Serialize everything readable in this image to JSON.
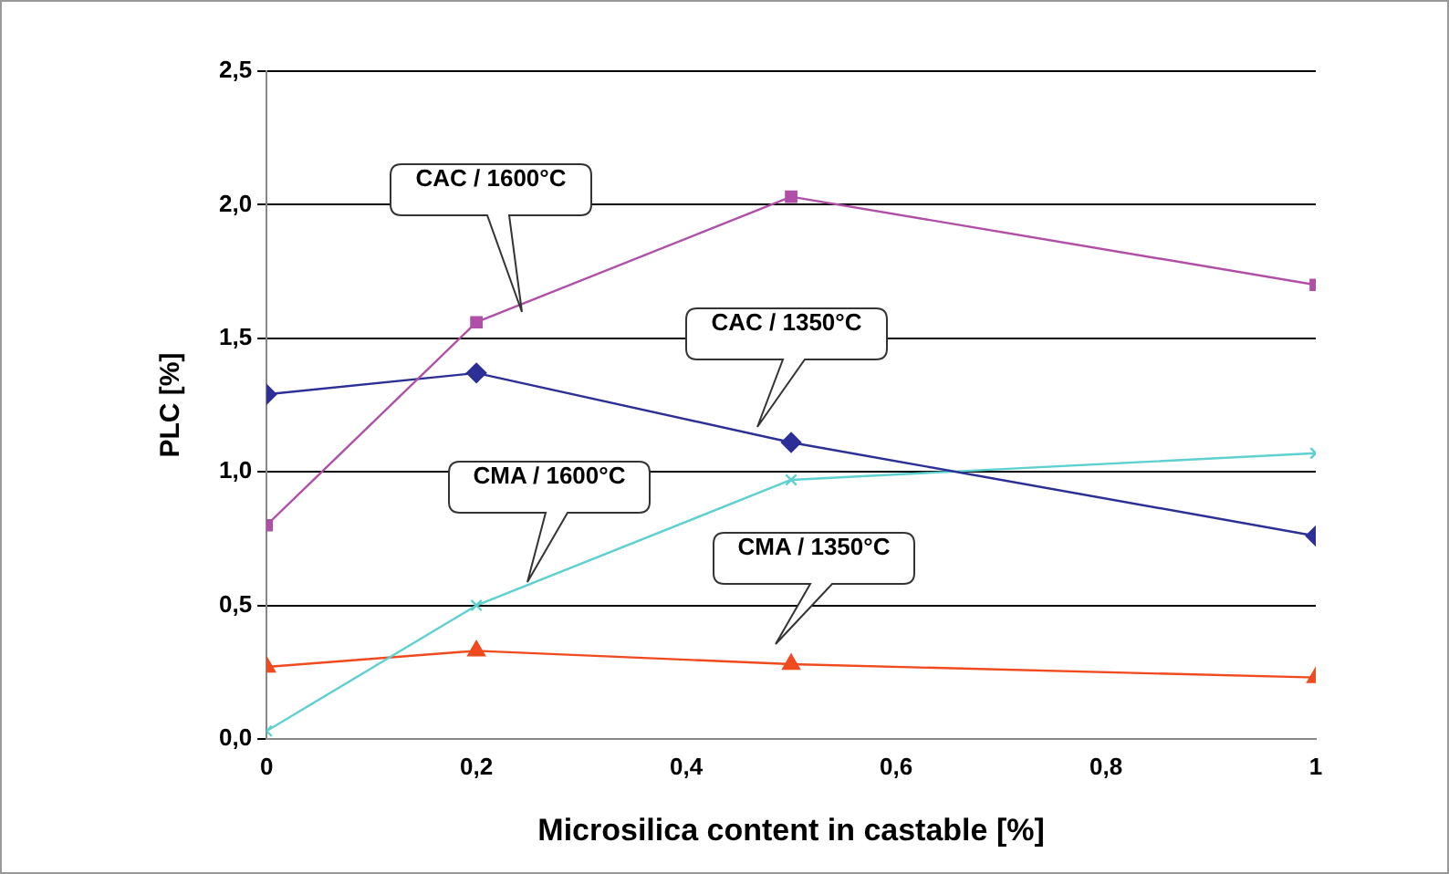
{
  "chart_data": {
    "type": "line",
    "xlabel": "Microsilica content in castable [%]",
    "ylabel": "PLC [%]",
    "x": [
      0,
      0.2,
      0.5,
      1
    ],
    "series": [
      {
        "color": "#b04fa8",
        "marker": "square",
        "values": [
          0.8,
          1.56,
          2.03,
          1.7
        ]
      },
      {
        "color": "#2b2f96",
        "marker": "diamond",
        "values": [
          1.29,
          1.37,
          1.11,
          0.76
        ]
      },
      {
        "color": "#5fd0d0",
        "marker": "cross",
        "values": [
          0.03,
          0.5,
          0.97,
          1.07
        ]
      },
      {
        "color": "#f04a1e",
        "marker": "triangle",
        "values": [
          0.27,
          0.33,
          0.28,
          0.23
        ]
      }
    ],
    "xlim": [
      0,
      1
    ],
    "xticks": [
      0,
      {
        "value": 0.2,
        "label": "0,2"
      },
      {
        "value": 0.4,
        "label": "0,4"
      },
      {
        "value": 0.6,
        "label": "0,6"
      },
      {
        "value": 0.8,
        "label": "0,8"
      },
      1
    ],
    "ylim": [
      0,
      2.5
    ],
    "yticks": [
      {
        "value": 0,
        "label": "0,0"
      },
      {
        "value": 0.5,
        "label": "0,5"
      },
      {
        "value": 1,
        "label": "1,0"
      },
      {
        "value": 1.5,
        "label": "1,5"
      },
      {
        "value": 2,
        "label": "2,0"
      },
      {
        "value": 2.5,
        "label": "2,5"
      }
    ],
    "grid": "y",
    "line_style": "solid",
    "annotations": [
      "CAC / 1600°C",
      "CAC / 1350°C",
      "CMA / 1600°C",
      "CMA / 1350°C"
    ]
  }
}
